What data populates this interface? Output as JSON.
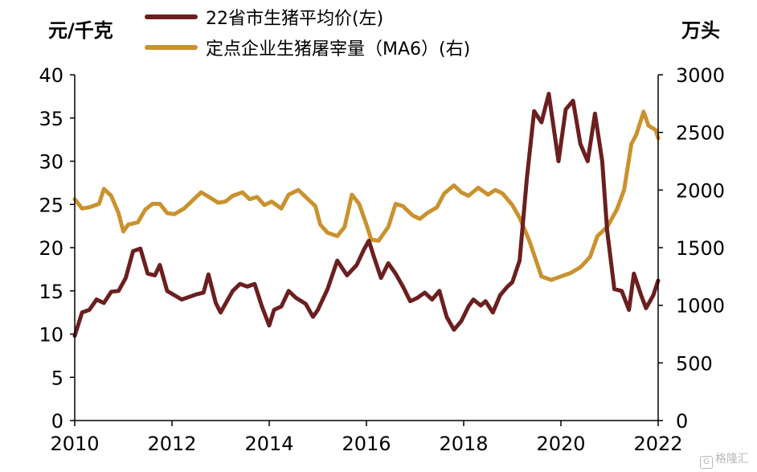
{
  "chart_data": {
    "type": "line",
    "left_unit": "元/千克",
    "right_unit": "万头",
    "x_ticks": [
      "2010",
      "2012",
      "2014",
      "2016",
      "2018",
      "2020",
      "2022"
    ],
    "x_range": [
      2010,
      2022
    ],
    "y_left": {
      "range": [
        0,
        40
      ],
      "ticks": [
        0,
        5,
        10,
        15,
        20,
        25,
        30,
        35,
        40
      ]
    },
    "y_right": {
      "range": [
        0,
        3000
      ],
      "ticks": [
        0,
        500,
        1000,
        1500,
        2000,
        2500,
        3000
      ]
    },
    "legend_position": "top-center",
    "grid": false,
    "series": [
      {
        "name": "22省市生猪平均价(左)",
        "axis": "left",
        "color": "#6b1f1f",
        "points": [
          [
            2010.0,
            9.8
          ],
          [
            2010.15,
            12.5
          ],
          [
            2010.3,
            12.8
          ],
          [
            2010.45,
            14.0
          ],
          [
            2010.6,
            13.6
          ],
          [
            2010.75,
            14.9
          ],
          [
            2010.9,
            15.0
          ],
          [
            2011.05,
            16.5
          ],
          [
            2011.2,
            19.6
          ],
          [
            2011.35,
            19.9
          ],
          [
            2011.5,
            17.0
          ],
          [
            2011.65,
            16.8
          ],
          [
            2011.75,
            18.0
          ],
          [
            2011.9,
            15.0
          ],
          [
            2012.05,
            14.5
          ],
          [
            2012.2,
            14.0
          ],
          [
            2012.35,
            14.3
          ],
          [
            2012.5,
            14.6
          ],
          [
            2012.65,
            14.8
          ],
          [
            2012.75,
            16.9
          ],
          [
            2012.9,
            13.6
          ],
          [
            2013.0,
            12.5
          ],
          [
            2013.1,
            13.5
          ],
          [
            2013.25,
            15.0
          ],
          [
            2013.4,
            15.8
          ],
          [
            2013.55,
            15.5
          ],
          [
            2013.7,
            15.8
          ],
          [
            2013.85,
            13.2
          ],
          [
            2014.0,
            11.0
          ],
          [
            2014.1,
            12.8
          ],
          [
            2014.25,
            13.2
          ],
          [
            2014.4,
            15.0
          ],
          [
            2014.55,
            14.2
          ],
          [
            2014.75,
            13.5
          ],
          [
            2014.9,
            12.0
          ],
          [
            2015.0,
            12.8
          ],
          [
            2015.2,
            15.2
          ],
          [
            2015.4,
            18.5
          ],
          [
            2015.6,
            16.8
          ],
          [
            2015.8,
            18.0
          ],
          [
            2015.95,
            19.8
          ],
          [
            2016.05,
            20.8
          ],
          [
            2016.15,
            19.0
          ],
          [
            2016.3,
            16.5
          ],
          [
            2016.45,
            18.2
          ],
          [
            2016.6,
            17.0
          ],
          [
            2016.75,
            15.5
          ],
          [
            2016.9,
            13.8
          ],
          [
            2017.05,
            14.2
          ],
          [
            2017.2,
            14.8
          ],
          [
            2017.35,
            14.0
          ],
          [
            2017.5,
            15.0
          ],
          [
            2017.65,
            12.0
          ],
          [
            2017.8,
            10.5
          ],
          [
            2017.95,
            11.5
          ],
          [
            2018.1,
            13.2
          ],
          [
            2018.2,
            14.0
          ],
          [
            2018.35,
            13.3
          ],
          [
            2018.45,
            13.8
          ],
          [
            2018.6,
            12.5
          ],
          [
            2018.75,
            14.5
          ],
          [
            2018.9,
            15.5
          ],
          [
            2019.0,
            16.0
          ],
          [
            2019.15,
            18.5
          ],
          [
            2019.3,
            28.0
          ],
          [
            2019.45,
            35.8
          ],
          [
            2019.6,
            34.5
          ],
          [
            2019.75,
            37.8
          ],
          [
            2019.95,
            30.0
          ],
          [
            2020.1,
            36.0
          ],
          [
            2020.25,
            37.0
          ],
          [
            2020.4,
            32.0
          ],
          [
            2020.55,
            30.0
          ],
          [
            2020.7,
            35.5
          ],
          [
            2020.85,
            30.0
          ],
          [
            2020.95,
            22.0
          ],
          [
            2021.1,
            15.2
          ],
          [
            2021.25,
            15.0
          ],
          [
            2021.4,
            12.8
          ],
          [
            2021.5,
            17.0
          ],
          [
            2021.65,
            14.5
          ],
          [
            2021.75,
            13.0
          ],
          [
            2021.9,
            14.5
          ],
          [
            2022.0,
            16.2
          ]
        ]
      },
      {
        "name": "定点企业生猪屠宰量（MA6）(右)",
        "axis": "right",
        "color": "#c9922e",
        "points": [
          [
            2010.0,
            1920
          ],
          [
            2010.15,
            1840
          ],
          [
            2010.3,
            1850
          ],
          [
            2010.5,
            1880
          ],
          [
            2010.6,
            2010
          ],
          [
            2010.75,
            1950
          ],
          [
            2010.9,
            1800
          ],
          [
            2011.0,
            1640
          ],
          [
            2011.1,
            1700
          ],
          [
            2011.3,
            1720
          ],
          [
            2011.45,
            1830
          ],
          [
            2011.6,
            1880
          ],
          [
            2011.75,
            1880
          ],
          [
            2011.9,
            1800
          ],
          [
            2012.05,
            1790
          ],
          [
            2012.25,
            1840
          ],
          [
            2012.45,
            1920
          ],
          [
            2012.6,
            1980
          ],
          [
            2012.8,
            1930
          ],
          [
            2012.95,
            1890
          ],
          [
            2013.1,
            1900
          ],
          [
            2013.25,
            1950
          ],
          [
            2013.45,
            1980
          ],
          [
            2013.6,
            1920
          ],
          [
            2013.75,
            1940
          ],
          [
            2013.9,
            1870
          ],
          [
            2014.05,
            1900
          ],
          [
            2014.25,
            1840
          ],
          [
            2014.4,
            1960
          ],
          [
            2014.6,
            2000
          ],
          [
            2014.8,
            1920
          ],
          [
            2014.95,
            1860
          ],
          [
            2015.05,
            1700
          ],
          [
            2015.2,
            1630
          ],
          [
            2015.4,
            1600
          ],
          [
            2015.55,
            1680
          ],
          [
            2015.7,
            1960
          ],
          [
            2015.85,
            1880
          ],
          [
            2016.0,
            1700
          ],
          [
            2016.1,
            1570
          ],
          [
            2016.25,
            1560
          ],
          [
            2016.45,
            1680
          ],
          [
            2016.6,
            1880
          ],
          [
            2016.75,
            1860
          ],
          [
            2016.95,
            1780
          ],
          [
            2017.1,
            1750
          ],
          [
            2017.25,
            1800
          ],
          [
            2017.45,
            1850
          ],
          [
            2017.6,
            1970
          ],
          [
            2017.8,
            2040
          ],
          [
            2017.95,
            1980
          ],
          [
            2018.1,
            1950
          ],
          [
            2018.3,
            2020
          ],
          [
            2018.5,
            1960
          ],
          [
            2018.65,
            2000
          ],
          [
            2018.8,
            1970
          ],
          [
            2019.0,
            1870
          ],
          [
            2019.15,
            1760
          ],
          [
            2019.35,
            1560
          ],
          [
            2019.6,
            1250
          ],
          [
            2019.8,
            1220
          ],
          [
            2020.0,
            1250
          ],
          [
            2020.2,
            1280
          ],
          [
            2020.4,
            1330
          ],
          [
            2020.6,
            1420
          ],
          [
            2020.75,
            1600
          ],
          [
            2020.95,
            1680
          ],
          [
            2021.15,
            1830
          ],
          [
            2021.3,
            2000
          ],
          [
            2021.45,
            2400
          ],
          [
            2021.55,
            2480
          ],
          [
            2021.7,
            2680
          ],
          [
            2021.8,
            2560
          ],
          [
            2021.95,
            2520
          ],
          [
            2022.0,
            2450
          ]
        ]
      }
    ]
  },
  "watermark": {
    "icon": "gelonghui-logo-icon",
    "text": "格隆汇"
  }
}
